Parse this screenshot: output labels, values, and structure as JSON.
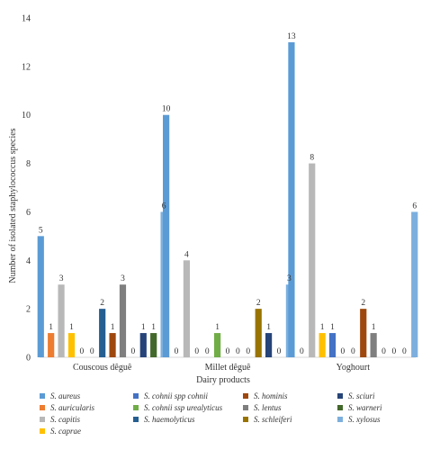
{
  "chart_data": {
    "type": "bar",
    "xlabel": "Dairy products",
    "ylabel": "Number of isolated staphylococcus species",
    "ylim": [
      0,
      14
    ],
    "yticks": [
      0,
      2,
      4,
      6,
      8,
      10,
      12,
      14
    ],
    "grid": false,
    "legend_position": "bottom",
    "categories": [
      "Couscous dêguê",
      "Millet dêguê",
      "Yoghourt"
    ],
    "series": [
      {
        "name": "S. aureus",
        "color": "#5b9bd5",
        "values": [
          5,
          10,
          13
        ]
      },
      {
        "name": "S. auricularis",
        "color": "#ed7d31",
        "values": [
          1,
          0,
          0
        ]
      },
      {
        "name": "S. capitis",
        "color": "#b8b8b8",
        "values": [
          3,
          4,
          8
        ]
      },
      {
        "name": "S. caprae",
        "color": "#ffc000",
        "values": [
          1,
          0,
          1
        ]
      },
      {
        "name": "S. cohnii spp cohnii",
        "color": "#4472c4",
        "values": [
          0,
          0,
          1
        ]
      },
      {
        "name": "S. cohnii ssp urealyticus",
        "color": "#70ad47",
        "values": [
          0,
          1,
          0
        ]
      },
      {
        "name": "S. haemolyticus",
        "color": "#255e91",
        "values": [
          2,
          0,
          0
        ]
      },
      {
        "name": "S. hominis",
        "color": "#9e480e",
        "values": [
          1,
          0,
          2
        ]
      },
      {
        "name": "S. lentus",
        "color": "#7f7f7f",
        "values": [
          3,
          0,
          1
        ]
      },
      {
        "name": "S. schleiferi",
        "color": "#997300",
        "values": [
          0,
          2,
          0
        ]
      },
      {
        "name": "S. sciuri",
        "color": "#264478",
        "values": [
          1,
          1,
          0
        ]
      },
      {
        "name": "S. warneri",
        "color": "#43682b",
        "values": [
          1,
          0,
          0
        ]
      },
      {
        "name": "S. xylosus",
        "color": "#7cafdd",
        "values": [
          6,
          3,
          6
        ]
      }
    ],
    "legend_order": [
      0,
      4,
      7,
      10,
      1,
      5,
      8,
      11,
      2,
      6,
      9,
      12,
      3
    ]
  }
}
